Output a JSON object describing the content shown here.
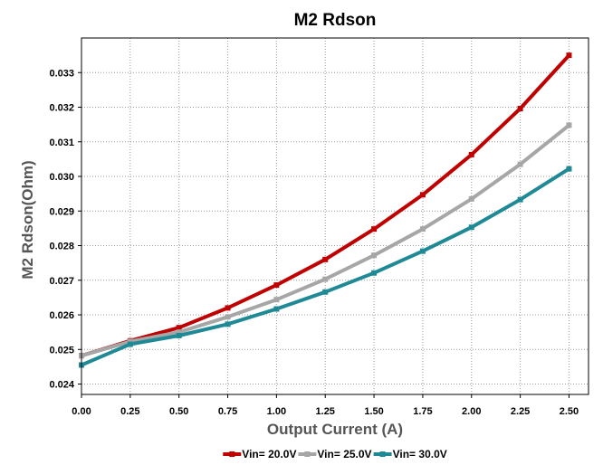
{
  "chart_data": {
    "type": "line",
    "title": "M2 Rdson",
    "xlabel": "Output Current (A)",
    "ylabel": "M2 Rdson(Ohm)",
    "x": [
      0.0,
      0.25,
      0.5,
      0.75,
      1.0,
      1.25,
      1.5,
      1.75,
      2.0,
      2.25,
      2.5
    ],
    "x_ticks": [
      "0.00",
      "0.25",
      "0.50",
      "0.75",
      "1.00",
      "1.25",
      "1.50",
      "1.75",
      "2.00",
      "2.25",
      "2.50"
    ],
    "y_ticks": [
      "0.024",
      "0.025",
      "0.026",
      "0.027",
      "0.028",
      "0.029",
      "0.030",
      "0.031",
      "0.032",
      "0.033"
    ],
    "xlim": [
      0.0,
      2.6
    ],
    "ylim": [
      0.0237,
      0.034
    ],
    "grid": true,
    "legend_position": "bottom",
    "series": [
      {
        "name": "Vin= 20.0V",
        "color": "#c00000",
        "values": [
          0.02482,
          0.02525,
          0.02563,
          0.0262,
          0.02686,
          0.0276,
          0.02848,
          0.02947,
          0.03063,
          0.03196,
          0.0335
        ]
      },
      {
        "name": "Vin= 25.0V",
        "color": "#a6a6a6",
        "values": [
          0.02482,
          0.02523,
          0.0255,
          0.02594,
          0.02644,
          0.02703,
          0.02772,
          0.02848,
          0.02935,
          0.03035,
          0.03148
        ]
      },
      {
        "name": "Vin= 30.0V",
        "color": "#1f8a96",
        "values": [
          0.02455,
          0.02515,
          0.0254,
          0.02573,
          0.02617,
          0.02666,
          0.02721,
          0.02784,
          0.02853,
          0.02933,
          0.03022
        ]
      }
    ]
  }
}
